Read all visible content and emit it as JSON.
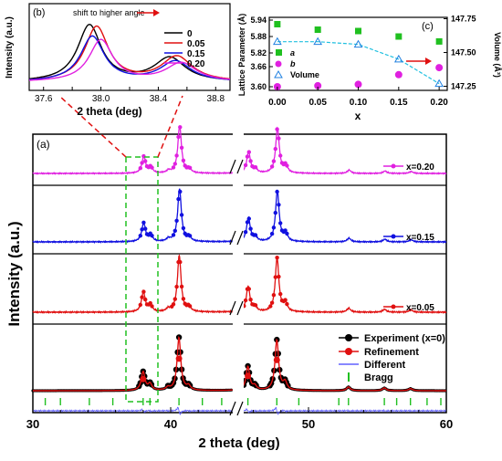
{
  "chart_data": [
    {
      "type": "line",
      "panel_label": "(a)",
      "xlabel": "2 theta (deg)",
      "ylabel": "Intensity (a.u.)",
      "xlim": [
        30,
        60
      ],
      "x_ticks": [
        30,
        40,
        50,
        60
      ],
      "axis_break": [
        44.5,
        45.2
      ],
      "peaks": [
        {
          "x": 38.0,
          "h": 0.35
        },
        {
          "x": 38.5,
          "h": 0.12
        },
        {
          "x": 39.8,
          "h": 0.05
        },
        {
          "x": 40.6,
          "h": 1.0
        },
        {
          "x": 41.3,
          "h": 0.08
        },
        {
          "x": 45.6,
          "h": 0.45
        },
        {
          "x": 46.1,
          "h": 0.08
        },
        {
          "x": 47.7,
          "h": 0.95
        },
        {
          "x": 48.3,
          "h": 0.15
        },
        {
          "x": 52.9,
          "h": 0.07
        },
        {
          "x": 55.5,
          "h": 0.05
        },
        {
          "x": 57.4,
          "h": 0.04
        }
      ],
      "series": [
        {
          "name": "x=0.20",
          "color": "#e020e0"
        },
        {
          "name": "x=0.15",
          "color": "#1010e0"
        },
        {
          "name": "x=0.05",
          "color": "#e01010"
        },
        {
          "name": "Experiment (x=0)",
          "color": "#000000"
        },
        {
          "name": "Refinement",
          "color": "#e01010"
        },
        {
          "name": "Different",
          "color": "#6060ff"
        },
        {
          "name": "Bragg",
          "color": "#20c020"
        }
      ],
      "bragg_positions": [
        30.9,
        32.0,
        34.1,
        35.8,
        38.0,
        38.5,
        40.6,
        42.3,
        43.7,
        45.6,
        47.7,
        49.3,
        52.2,
        52.9,
        55.5,
        56.4,
        57.4,
        58.6,
        59.6
      ]
    },
    {
      "type": "line",
      "panel_label": "(b)",
      "title": "shift to higher angle",
      "xlabel": "2 theta (deg)",
      "ylabel": "Intensity (a.u.)",
      "xlim": [
        37.5,
        38.9
      ],
      "x_ticks": [
        37.6,
        37.8,
        38.0,
        38.2,
        38.4,
        38.6,
        38.8
      ],
      "series": [
        {
          "name": "0",
          "color": "#000000",
          "peak1": 37.92,
          "peak2": 38.48,
          "h1": 1.0,
          "h2": 0.42
        },
        {
          "name": "0.05",
          "color": "#e01010",
          "peak1": 37.97,
          "peak2": 38.53,
          "h1": 0.97,
          "h2": 0.44
        },
        {
          "name": "0.15",
          "color": "#1010e0",
          "peak1": 37.94,
          "peak2": 38.52,
          "h1": 0.8,
          "h2": 0.36
        },
        {
          "name": "0.20",
          "color": "#e020e0",
          "peak1": 38.0,
          "peak2": 38.56,
          "h1": 0.74,
          "h2": 0.33
        }
      ]
    },
    {
      "type": "scatter",
      "panel_label": "(c)",
      "xlabel": "x",
      "ylabel": "Lattice Parameter (Å)",
      "ylabel2": "Volume (Å³)",
      "xlim": [
        -0.01,
        0.21
      ],
      "x_ticks": [
        "0.00",
        "0.05",
        "0.10",
        "0.15",
        "0.20"
      ],
      "y_ticks": [
        "3.60",
        "3.66",
        "5.82",
        "5.88",
        "5.94"
      ],
      "y2_ticks": [
        "147.25",
        "147.50",
        "147.75"
      ],
      "y2lim": [
        147.22,
        147.76
      ],
      "series": [
        {
          "name": "a",
          "marker": "square",
          "color": "#20c020",
          "x": [
            0.0,
            0.05,
            0.1,
            0.15,
            0.2
          ],
          "y": [
            5.925,
            5.905,
            5.9,
            5.88,
            5.862
          ]
        },
        {
          "name": "b",
          "marker": "circle",
          "color": "#e020e0",
          "x": [
            0.0,
            0.05,
            0.1,
            0.15,
            0.2
          ],
          "y": [
            3.6,
            3.603,
            3.607,
            3.636,
            3.657
          ]
        },
        {
          "name": "Volume",
          "marker": "triangle",
          "color": "#2080e0",
          "x": [
            0.0,
            0.05,
            0.1,
            0.15,
            0.2
          ],
          "y": [
            147.58,
            147.58,
            147.56,
            147.45,
            147.27
          ]
        }
      ]
    }
  ]
}
